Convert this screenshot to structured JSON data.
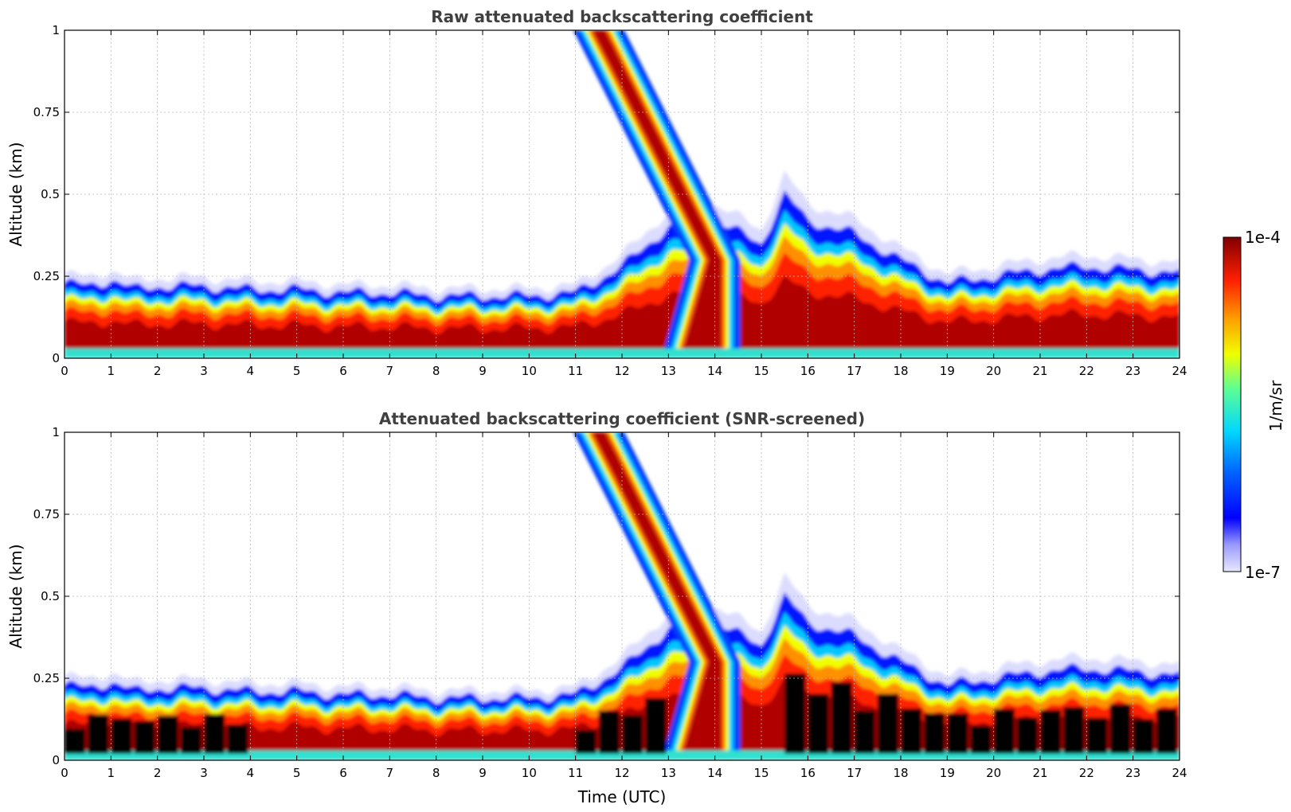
{
  "figure": {
    "x_axis_label": "Time (UTC)",
    "y_axis_label": "Altitude (km)",
    "colorbar": {
      "label": "1/m/sr",
      "max_label": "1e-4",
      "min_label": "1e-7",
      "scale": "log",
      "colormap": "jet (low values pale lavender)"
    }
  },
  "chart_data": [
    {
      "type": "heatmap",
      "title": "Raw attenuated backscattering coefficient",
      "xlabel": "",
      "ylabel": "Altitude (km)",
      "xlim": [
        0,
        24
      ],
      "ylim": [
        0,
        1
      ],
      "xticks": [
        "0",
        "1",
        "2",
        "3",
        "4",
        "5",
        "6",
        "7",
        "8",
        "9",
        "10",
        "11",
        "12",
        "13",
        "14",
        "15",
        "16",
        "17",
        "18",
        "19",
        "20",
        "21",
        "22",
        "23",
        "24"
      ],
      "yticks": [
        "0",
        "0.25",
        "0.5",
        "0.75",
        "1"
      ],
      "grid": true,
      "colorbar_range": [
        "1e-7",
        "1e-4"
      ],
      "layer_top_km": [
        [
          0,
          0.23
        ],
        [
          0.5,
          0.22
        ],
        [
          1,
          0.24
        ],
        [
          1.5,
          0.21
        ],
        [
          2,
          0.22
        ],
        [
          3,
          0.22
        ],
        [
          4,
          0.21
        ],
        [
          5,
          0.21
        ],
        [
          6,
          0.2
        ],
        [
          7,
          0.2
        ],
        [
          8,
          0.19
        ],
        [
          9,
          0.19
        ],
        [
          10,
          0.19
        ],
        [
          11,
          0.2
        ],
        [
          12,
          0.28
        ],
        [
          13,
          0.4
        ],
        [
          14,
          0.42
        ],
        [
          15,
          0.35
        ],
        [
          15.5,
          0.5
        ],
        [
          16,
          0.42
        ],
        [
          17,
          0.38
        ],
        [
          18,
          0.3
        ],
        [
          19,
          0.23
        ],
        [
          20,
          0.25
        ],
        [
          21,
          0.27
        ],
        [
          22,
          0.28
        ],
        [
          23,
          0.27
        ],
        [
          24,
          0.26
        ]
      ],
      "descending_layer": {
        "start": [
          11.5,
          1.0
        ],
        "end": [
          14.0,
          0.3
        ]
      }
    },
    {
      "type": "heatmap",
      "title": "Attenuated backscattering coefficient (SNR-screened)",
      "xlabel": "Time (UTC)",
      "ylabel": "Altitude (km)",
      "xlim": [
        0,
        24
      ],
      "ylim": [
        0,
        1
      ],
      "xticks": [
        "0",
        "1",
        "2",
        "3",
        "4",
        "5",
        "6",
        "7",
        "8",
        "9",
        "10",
        "11",
        "12",
        "13",
        "14",
        "15",
        "16",
        "17",
        "18",
        "19",
        "20",
        "21",
        "22",
        "23",
        "24"
      ],
      "yticks": [
        "0",
        "0.25",
        "0.5",
        "0.75",
        "1"
      ],
      "grid": true,
      "colorbar_range": [
        "1e-7",
        "1e-4"
      ]
    }
  ]
}
